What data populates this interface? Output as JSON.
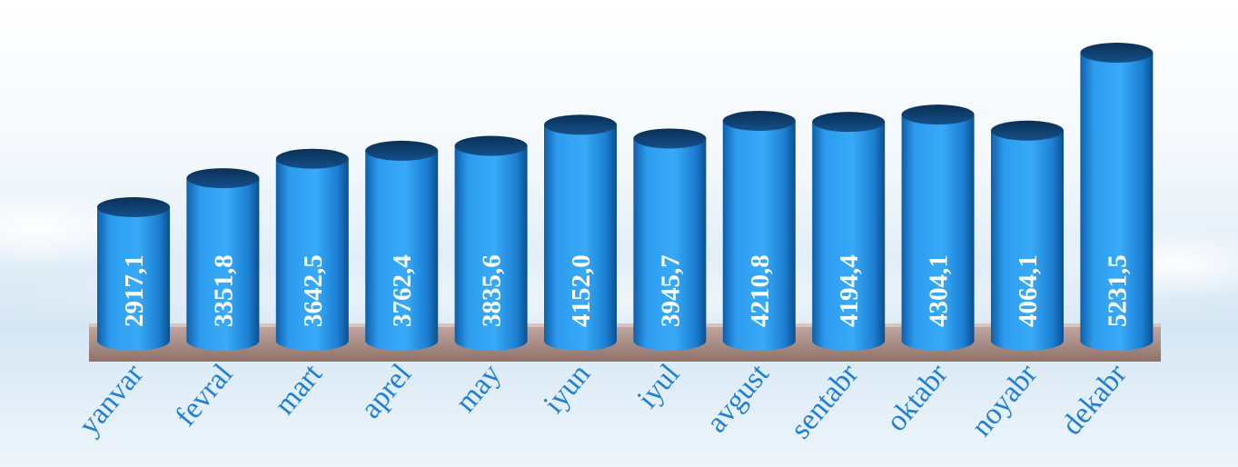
{
  "chart_data": {
    "type": "bar",
    "style": "3d-cylinder",
    "categories": [
      "yanvar",
      "fevral",
      "mart",
      "aprel",
      "may",
      "iyun",
      "iyul",
      "avgust",
      "sentabr",
      "oktabr",
      "noyabr",
      "dekabr"
    ],
    "values": [
      2917.1,
      3351.8,
      3642.5,
      3762.4,
      3835.6,
      4152.0,
      3945.7,
      4210.8,
      4194.4,
      4304.1,
      4064.1,
      5231.5
    ],
    "value_labels": [
      "2917,1",
      "3351,8",
      "3642,5",
      "3762,4",
      "3835,6",
      "4152,0",
      "3945,7",
      "4210,8",
      "4194,4",
      "4304,1",
      "4064,1",
      "5231,5"
    ],
    "title": "",
    "xlabel": "",
    "ylabel": "",
    "grid": false,
    "legend": "none",
    "colors": {
      "bar": "#2e9ff0",
      "bar_dark": "#0d5a9e",
      "bar_top": "#0e3f6e",
      "value_text": "#ffffff",
      "month_text": "#1f7fd6",
      "floor": "#a98c84",
      "sky_top": "#ffffff",
      "sky_bottom": "#bcd8ee"
    }
  }
}
